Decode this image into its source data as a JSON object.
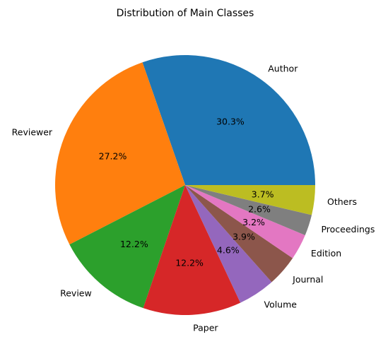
{
  "chart_data": {
    "type": "pie",
    "title": "Distribution of Main Classes",
    "start_angle": 0,
    "direction": "counterclockwise",
    "slices": [
      {
        "label": "Author",
        "value": 30.3,
        "pct_label": "30.3%",
        "color": "#1f77b4"
      },
      {
        "label": "Reviewer",
        "value": 27.2,
        "pct_label": "27.2%",
        "color": "#ff7f0e"
      },
      {
        "label": "Review",
        "value": 12.2,
        "pct_label": "12.2%",
        "color": "#2ca02c"
      },
      {
        "label": "Paper",
        "value": 12.2,
        "pct_label": "12.2%",
        "color": "#d62728"
      },
      {
        "label": "Volume",
        "value": 4.6,
        "pct_label": "4.6%",
        "color": "#9467bd"
      },
      {
        "label": "Journal",
        "value": 3.9,
        "pct_label": "3.9%",
        "color": "#8c564b"
      },
      {
        "label": "Edition",
        "value": 3.2,
        "pct_label": "3.2%",
        "color": "#e377c2"
      },
      {
        "label": "Proceedings",
        "value": 2.6,
        "pct_label": "2.6%",
        "color": "#7f7f7f"
      },
      {
        "label": "Others",
        "value": 3.7,
        "pct_label": "3.7%",
        "color": "#bcbd22"
      }
    ]
  }
}
